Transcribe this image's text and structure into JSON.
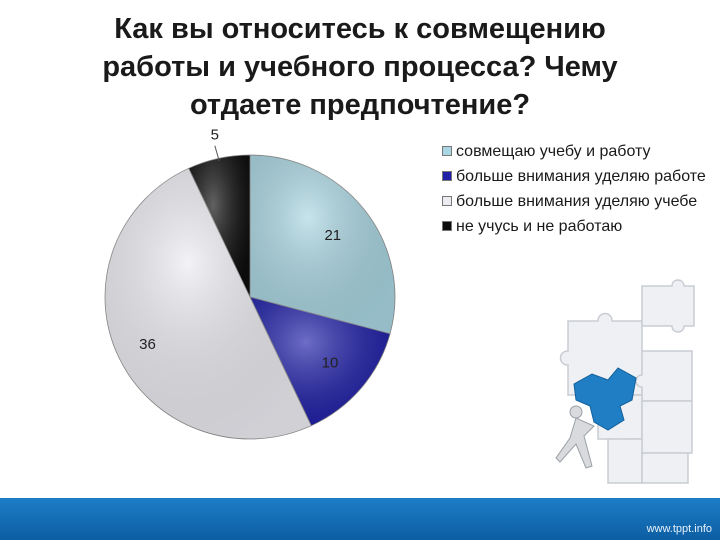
{
  "title": "Как вы относитесь к совмещению\nработы и учебного процесса? Чему\nотдаете предпочтение?",
  "chart_data": {
    "type": "pie",
    "series": [
      {
        "label": "совмещаю учебу и работу",
        "value": 21,
        "color": "#a9d6e2"
      },
      {
        "label": "больше внимания уделяю работе",
        "value": 10,
        "color": "#1f1fa8"
      },
      {
        "label": "больше внимания уделяю учебе",
        "value": 36,
        "color": "#ececf2"
      },
      {
        "label": "не учусь и не работаю",
        "value": 5,
        "color": "#0d0d0d"
      }
    ],
    "legend_position": "right",
    "data_labels": true
  },
  "footer": {
    "text": "www.tppt.info",
    "color": "#1c7dc6"
  },
  "illustration": {
    "name": "puzzle-wall-figure"
  }
}
